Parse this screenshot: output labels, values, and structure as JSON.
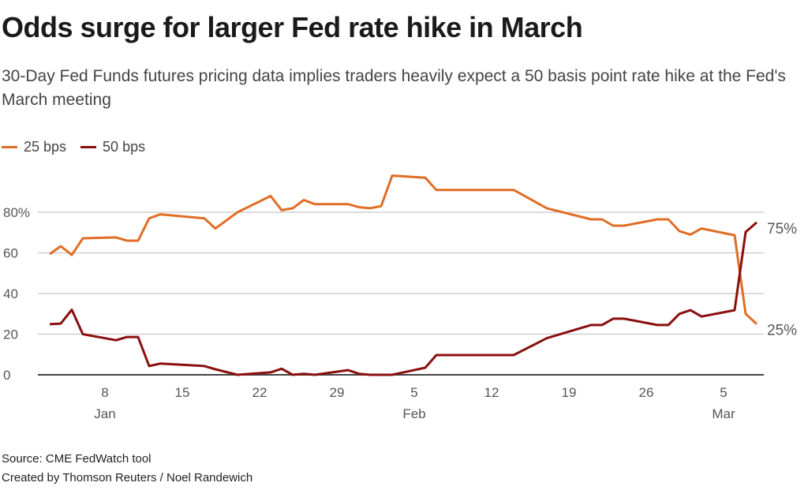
{
  "chart_data": {
    "type": "line",
    "title": "Odds surge for larger Fed rate hike in March",
    "subtitle": "30-Day Fed Funds futures pricing data implies traders heavily expect a 50 basis point rate hike at the Fed's March meeting",
    "ylim": [
      0,
      100
    ],
    "yticks": [
      "0",
      "20",
      "40",
      "60",
      "80%"
    ],
    "ytick_values": [
      0,
      20,
      40,
      60,
      80
    ],
    "xticks": [
      {
        "date": "Jan 8",
        "label": "8",
        "month": "Jan"
      },
      {
        "date": "Jan 15",
        "label": "15"
      },
      {
        "date": "Jan 22",
        "label": "22"
      },
      {
        "date": "Jan 29",
        "label": "29"
      },
      {
        "date": "Feb 5",
        "label": "5",
        "month": "Feb"
      },
      {
        "date": "Feb 12",
        "label": "12"
      },
      {
        "date": "Feb 19",
        "label": "19"
      },
      {
        "date": "Feb 26",
        "label": "26"
      },
      {
        "date": "Mar 5",
        "label": "5",
        "month": "Mar"
      }
    ],
    "grid": true,
    "legend_placement": "top-left",
    "x": [
      "Jan 3",
      "Jan 4",
      "Jan 5",
      "Jan 6",
      "Jan 9",
      "Jan 10",
      "Jan 11",
      "Jan 12",
      "Jan 13",
      "Jan 17",
      "Jan 18",
      "Jan 20",
      "Jan 23",
      "Jan 24",
      "Jan 25",
      "Jan 26",
      "Jan 27",
      "Jan 30",
      "Jan 31",
      "Feb 1",
      "Feb 2",
      "Feb 3",
      "Feb 6",
      "Feb 7",
      "Feb 14",
      "Feb 17",
      "Feb 21",
      "Feb 22",
      "Feb 23",
      "Feb 24",
      "Feb 27",
      "Feb 28",
      "Mar 1",
      "Mar 2",
      "Mar 3",
      "Mar 6",
      "Mar 7",
      "Mar 8"
    ],
    "series": [
      {
        "name": "25 bps",
        "color": "#e06d26",
        "end_label": "25%",
        "values": [
          59.4,
          63.3,
          59,
          67.2,
          67.6,
          66,
          66,
          77,
          79,
          77,
          72,
          80,
          88,
          81,
          82,
          86,
          84,
          84,
          82.5,
          82,
          83,
          98,
          97,
          91,
          91,
          82,
          76.5,
          76.5,
          73.4,
          73.4,
          76.5,
          76.5,
          70.7,
          69,
          72,
          68.7,
          30,
          25
        ]
      },
      {
        "name": "50 bps",
        "color": "#8a0f0f",
        "end_label": "75%",
        "values": [
          24.9,
          25.2,
          32,
          20,
          17,
          18.6,
          18.6,
          4.3,
          5.5,
          4.3,
          2.7,
          0,
          1.2,
          3,
          0,
          0.5,
          0,
          2.3,
          0.5,
          0,
          0,
          0,
          3.5,
          9.7,
          9.7,
          18,
          24.5,
          24.5,
          27.6,
          27.6,
          24.5,
          24.5,
          30,
          31.8,
          28.7,
          31.8,
          70.3,
          75
        ]
      }
    ]
  },
  "footer": {
    "source": "Source: CME FedWatch tool",
    "credit": "Created by Thomson Reuters / Noel Randewich"
  }
}
